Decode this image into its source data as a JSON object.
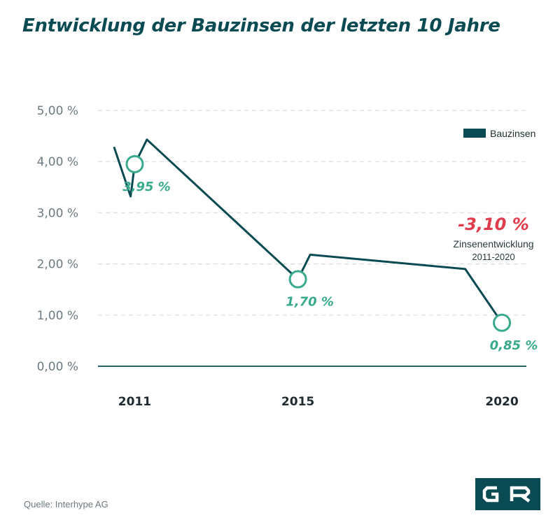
{
  "page": {
    "title": "Entwicklung der Bauzinsen der letzten 10 Jahre",
    "source": "Quelle: Interhype AG",
    "logo_letters": "GR"
  },
  "colors": {
    "line": "#0a4a52",
    "highlight": "#3aaa8c",
    "delta": "#e03c4b",
    "axis_text": "#6b7a80",
    "grid": "#d9dde0"
  },
  "annotation": {
    "value": "-3,10 %",
    "label": "Zinsenentwicklung",
    "range": "2011-2020"
  },
  "chart_data": {
    "type": "line",
    "title": "Entwicklung der Bauzinsen der letzten 10 Jahre",
    "xlabel": "",
    "ylabel": "",
    "ylim": [
      0,
      5
    ],
    "grid": true,
    "legend": "top-right",
    "y_ticks": [
      "0,00 %",
      "1,00 %",
      "2,00 %",
      "3,00 %",
      "4,00 %",
      "5,00 %"
    ],
    "x_ticks": [
      "2011",
      "2015",
      "2020"
    ],
    "series": [
      {
        "name": "Bauzinsen",
        "x": [
          2010.5,
          2010.9,
          2011.0,
          2011.3,
          2015.0,
          2015.3,
          2019.1,
          2020.0
        ],
        "y": [
          4.27,
          3.32,
          3.95,
          4.43,
          1.7,
          2.18,
          1.9,
          0.85
        ]
      }
    ],
    "highlights": [
      {
        "x": 2011,
        "y": 3.95,
        "label": "3,95 %"
      },
      {
        "x": 2015,
        "y": 1.7,
        "label": "1,70 %"
      },
      {
        "x": 2020,
        "y": 0.85,
        "label": "0,85 %"
      }
    ]
  }
}
